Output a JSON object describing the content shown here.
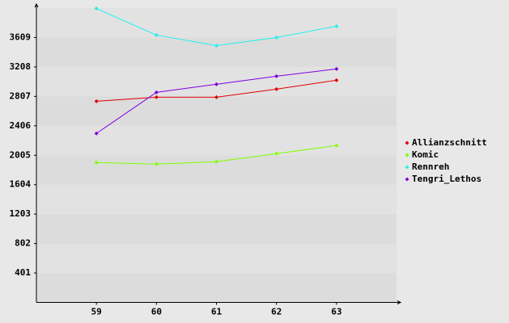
{
  "chart_data": {
    "type": "line",
    "x": [
      59,
      60,
      61,
      62,
      63
    ],
    "series": [
      {
        "name": "Allianzschnitt",
        "color": "#e00000",
        "values": [
          2741,
          2796,
          2796,
          2906,
          3027
        ]
      },
      {
        "name": "Komic",
        "color": "#80ff00",
        "values": [
          1906,
          1884,
          1917,
          2027,
          2137
        ]
      },
      {
        "name": "Rennreh",
        "color": "#20f0f0",
        "values": [
          4004,
          3642,
          3499,
          3609,
          3763
        ]
      },
      {
        "name": "Tengri_Lethos",
        "color": "#8000e0",
        "values": [
          2302,
          2862,
          2972,
          3082,
          3181
        ]
      }
    ],
    "xlim": [
      58,
      64
    ],
    "xticks": [
      59,
      60,
      61,
      62,
      63
    ],
    "ylim": [
      0,
      4010
    ],
    "yticks": [
      401,
      802,
      1203,
      1604,
      2005,
      2406,
      2807,
      3208,
      3609
    ],
    "legend": "right"
  }
}
